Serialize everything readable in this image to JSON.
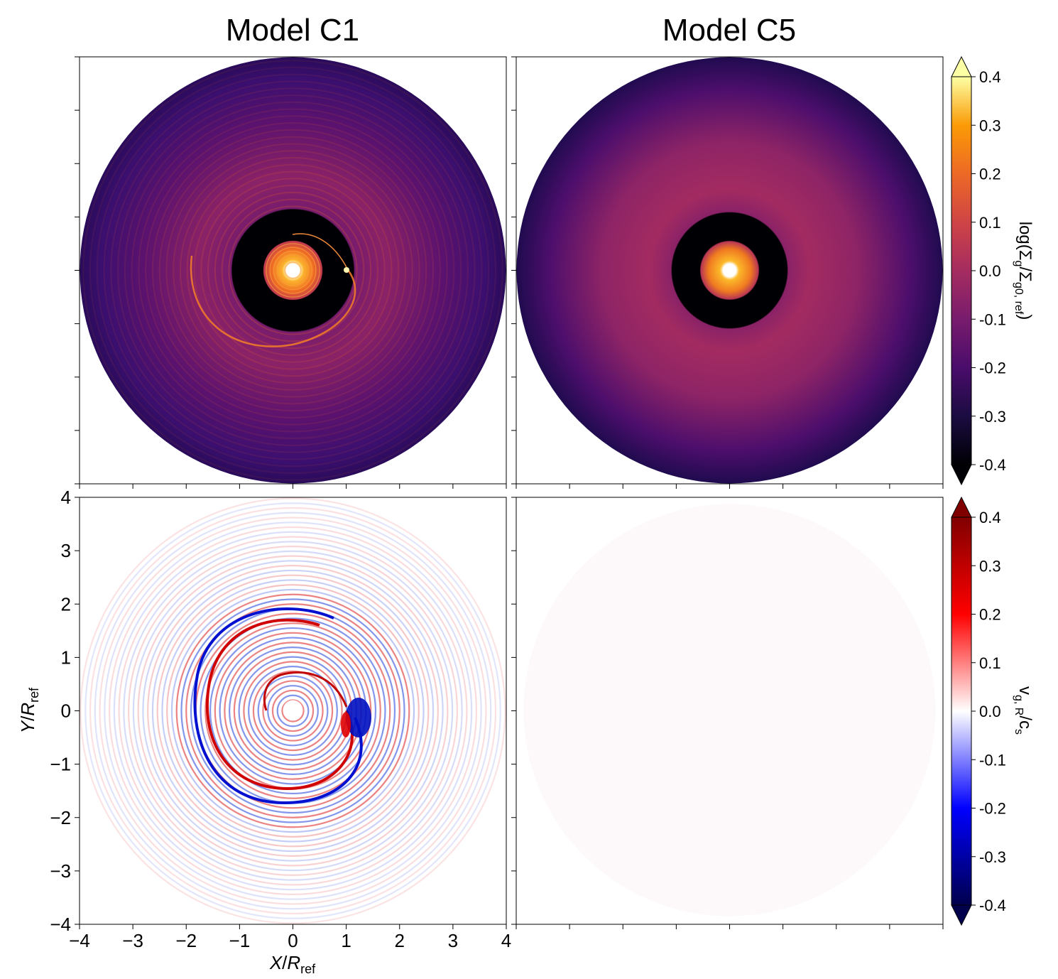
{
  "titles": {
    "left": "Model C1",
    "right": "Model C5"
  },
  "axes": {
    "xlabel_main": "X",
    "xlabel_sub": "ref",
    "xlabel_var": "R",
    "ylabel_main": "Y",
    "ylabel_sub": "ref",
    "ylabel_var": "R"
  },
  "colorbars": {
    "top": {
      "label": "log(Σg/Σg0, ref)",
      "label_parts": [
        "log(Σ",
        "g",
        "/Σ",
        "g0, ref",
        ")"
      ],
      "colormap": "inferno",
      "extend": "both"
    },
    "bottom": {
      "label": "vg, R/cs",
      "label_parts": [
        "v",
        "g, R",
        "/c",
        "s"
      ],
      "colormap": "seismic",
      "extend": "both"
    }
  },
  "chart_data": [
    {
      "type": "heatmap",
      "panel": "top-left",
      "title": "Model C1",
      "quantity": "log(Σg/Σg0, ref)",
      "xlim": [
        -4,
        4
      ],
      "ylim": [
        -4,
        4
      ],
      "xticks": [],
      "yticks": [],
      "clim": [
        -0.4,
        0.4
      ],
      "disk": {
        "outer_radius": 4.0,
        "inner_hole_radius": 0.1,
        "gap": [
          0.55,
          1.15
        ],
        "gap_value": -0.4,
        "spiral_arm": true,
        "ring_amplitude": 0.06
      }
    },
    {
      "type": "heatmap",
      "panel": "top-right",
      "title": "Model C5",
      "quantity": "log(Σg/Σg0, ref)",
      "xlim": [
        -4,
        4
      ],
      "ylim": [
        -4,
        4
      ],
      "xticks": [],
      "yticks": [],
      "clim": [
        -0.4,
        0.4
      ],
      "disk": {
        "outer_radius": 4.0,
        "inner_hole_radius": 0.1,
        "gap": [
          0.55,
          1.1
        ],
        "gap_value": -0.4,
        "spiral_arm": false,
        "ring_amplitude": 0.0
      }
    },
    {
      "type": "heatmap",
      "panel": "bottom-left",
      "quantity": "vg, R/cs",
      "xlabel": "X/Rref",
      "ylabel": "Y/Rref",
      "xlim": [
        -4,
        4
      ],
      "ylim": [
        -4,
        4
      ],
      "xticks": [
        -4,
        -3,
        -2,
        -1,
        0,
        1,
        2,
        3,
        4
      ],
      "xtick_labels": [
        "−4",
        "−3",
        "−2",
        "−1",
        "0",
        "1",
        "2",
        "3",
        "4"
      ],
      "yticks": [
        -4,
        -3,
        -2,
        -1,
        0,
        1,
        2,
        3,
        4
      ],
      "ytick_labels": [
        "−4",
        "−3",
        "−2",
        "−1",
        "0",
        "1",
        "2",
        "3",
        "4"
      ],
      "clim": [
        -0.4,
        0.4
      ],
      "disk": {
        "outer_radius": 4.0,
        "inner_hole_radius": 0.1,
        "spiral_arm": true,
        "ring_amplitude": 0.08
      }
    },
    {
      "type": "heatmap",
      "panel": "bottom-right",
      "quantity": "vg, R/cs",
      "xlim": [
        -4,
        4
      ],
      "ylim": [
        -4,
        4
      ],
      "xticks": [],
      "yticks": [],
      "clim": [
        -0.4,
        0.4
      ],
      "disk": {
        "outer_radius": 4.0,
        "inner_hole_radius": 0.0,
        "spiral_arm": false,
        "ring_amplitude": 0.0,
        "uniform_value": 0.0
      }
    },
    {
      "type": "colorbar",
      "panel": "top-colorbar",
      "label": "log(Σg/Σg0, ref)",
      "ticks": [
        -0.4,
        -0.3,
        -0.2,
        -0.1,
        0.0,
        0.1,
        0.2,
        0.3,
        0.4
      ],
      "tick_labels": [
        "-0.4",
        "-0.3",
        "-0.2",
        "-0.1",
        "0.0",
        "0.1",
        "0.2",
        "0.3",
        "0.4"
      ],
      "range": [
        -0.4,
        0.4
      ],
      "colormap": "inferno"
    },
    {
      "type": "colorbar",
      "panel": "bottom-colorbar",
      "label": "vg, R/cs",
      "ticks": [
        -0.4,
        -0.3,
        -0.2,
        -0.1,
        0.0,
        0.1,
        0.2,
        0.3,
        0.4
      ],
      "tick_labels": [
        "-0.4",
        "-0.3",
        "-0.2",
        "-0.1",
        "0.0",
        "0.1",
        "0.2",
        "0.3",
        "0.4"
      ],
      "range": [
        -0.4,
        0.4
      ],
      "colormap": "seismic"
    }
  ]
}
